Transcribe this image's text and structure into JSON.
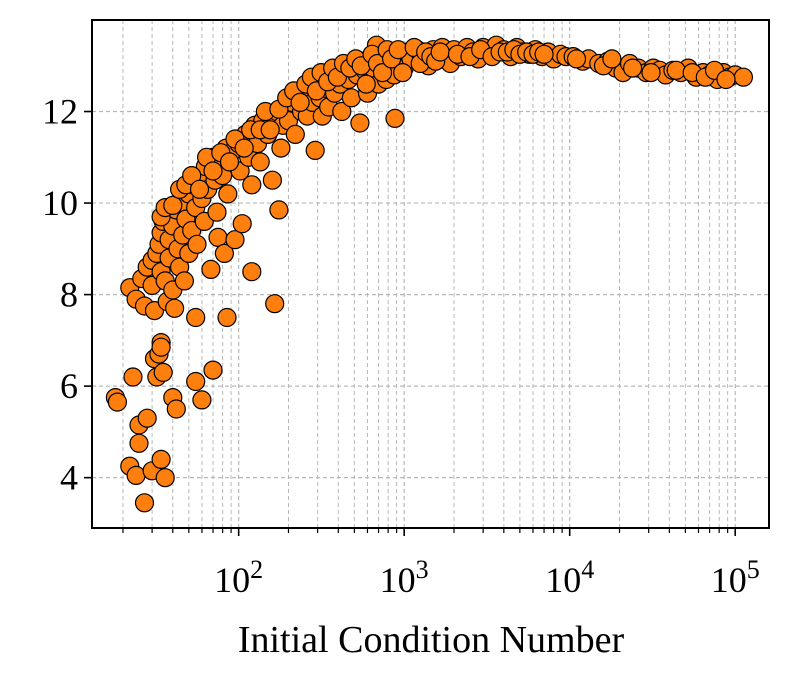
{
  "chart_data": {
    "type": "scatter",
    "title": "",
    "xlabel": "Initial Condition Number",
    "ylabel": "",
    "xscale": "log",
    "xlim": [
      13,
      160000
    ],
    "ylim": [
      2.9,
      14.0
    ],
    "grid": true,
    "grid_style": "dashed",
    "legend": "none",
    "marker_color": "#ff7f0e",
    "marker_edge_color": "#000000",
    "x_tick_labels": [
      {
        "value": 100,
        "base": "10",
        "exp": "2"
      },
      {
        "value": 1000,
        "base": "10",
        "exp": "3"
      },
      {
        "value": 10000,
        "base": "10",
        "exp": "4"
      },
      {
        "value": 100000,
        "base": "10",
        "exp": "5"
      }
    ],
    "y_ticks": [
      4,
      6,
      8,
      10,
      12
    ],
    "y_tick_labels": [
      "4",
      "6",
      "8",
      "10",
      "12"
    ],
    "points": [
      [
        18,
        5.75
      ],
      [
        18.5,
        5.65
      ],
      [
        22,
        4.25
      ],
      [
        23,
        6.2
      ],
      [
        24,
        4.05
      ],
      [
        25,
        4.75
      ],
      [
        25,
        5.15
      ],
      [
        27,
        3.45
      ],
      [
        28,
        5.3
      ],
      [
        30,
        4.15
      ],
      [
        31,
        6.6
      ],
      [
        32,
        6.2
      ],
      [
        33,
        6.7
      ],
      [
        34,
        6.95
      ],
      [
        34,
        6.85
      ],
      [
        35,
        6.3
      ],
      [
        34,
        4.4
      ],
      [
        36,
        4.0
      ],
      [
        40,
        5.75
      ],
      [
        42,
        5.5
      ],
      [
        55,
        6.1
      ],
      [
        60,
        5.7
      ],
      [
        70,
        6.35
      ],
      [
        55,
        7.5
      ],
      [
        85,
        7.5
      ],
      [
        120,
        8.5
      ],
      [
        165,
        7.8
      ],
      [
        175,
        9.85
      ],
      [
        22,
        8.15
      ],
      [
        24,
        7.9
      ],
      [
        26,
        8.35
      ],
      [
        27,
        7.75
      ],
      [
        28,
        8.6
      ],
      [
        30,
        8.75
      ],
      [
        30,
        8.2
      ],
      [
        31,
        7.65
      ],
      [
        32,
        8.9
      ],
      [
        33,
        9.1
      ],
      [
        34,
        8.5
      ],
      [
        34,
        9.35
      ],
      [
        35,
        9.6
      ],
      [
        36,
        8.3
      ],
      [
        37,
        7.85
      ],
      [
        38,
        9.2
      ],
      [
        38,
        8.8
      ],
      [
        40,
        9.5
      ],
      [
        40,
        8.1
      ],
      [
        41,
        7.7
      ],
      [
        42,
        9.85
      ],
      [
        43,
        9.0
      ],
      [
        44,
        8.6
      ],
      [
        45,
        10.0
      ],
      [
        46,
        9.3
      ],
      [
        47,
        8.3
      ],
      [
        48,
        9.65
      ],
      [
        50,
        10.2
      ],
      [
        50,
        8.9
      ],
      [
        52,
        9.4
      ],
      [
        53,
        10.4
      ],
      [
        55,
        9.9
      ],
      [
        56,
        9.1
      ],
      [
        58,
        10.6
      ],
      [
        60,
        10.1
      ],
      [
        62,
        9.6
      ],
      [
        63,
        10.8
      ],
      [
        65,
        10.3
      ],
      [
        68,
        8.55
      ],
      [
        70,
        11.0
      ],
      [
        72,
        10.5
      ],
      [
        74,
        9.8
      ],
      [
        75,
        9.25
      ],
      [
        78,
        10.9
      ],
      [
        80,
        10.6
      ],
      [
        82,
        8.9
      ],
      [
        84,
        11.2
      ],
      [
        86,
        10.2
      ],
      [
        90,
        11.1
      ],
      [
        95,
        9.2
      ],
      [
        100,
        11.3
      ],
      [
        102,
        10.7
      ],
      [
        105,
        9.55
      ],
      [
        110,
        11.5
      ],
      [
        115,
        11.0
      ],
      [
        120,
        10.4
      ],
      [
        125,
        11.7
      ],
      [
        130,
        11.3
      ],
      [
        135,
        10.9
      ],
      [
        140,
        11.8
      ],
      [
        150,
        11.5
      ],
      [
        160,
        10.5
      ],
      [
        165,
        11.9
      ],
      [
        170,
        12.0
      ],
      [
        180,
        11.2
      ],
      [
        185,
        11.7
      ],
      [
        190,
        12.1
      ],
      [
        200,
        11.8
      ],
      [
        210,
        12.2
      ],
      [
        220,
        11.5
      ],
      [
        230,
        12.3
      ],
      [
        240,
        12.0
      ],
      [
        250,
        12.4
      ],
      [
        260,
        11.9
      ],
      [
        270,
        12.5
      ],
      [
        280,
        12.2
      ],
      [
        290,
        11.15
      ],
      [
        300,
        12.6
      ],
      [
        310,
        12.3
      ],
      [
        320,
        11.9
      ],
      [
        330,
        12.7
      ],
      [
        340,
        12.5
      ],
      [
        350,
        12.1
      ],
      [
        360,
        12.8
      ],
      [
        380,
        12.4
      ],
      [
        400,
        12.9
      ],
      [
        410,
        12.6
      ],
      [
        420,
        12.0
      ],
      [
        440,
        12.95
      ],
      [
        460,
        12.7
      ],
      [
        480,
        12.3
      ],
      [
        500,
        13.0
      ],
      [
        520,
        12.8
      ],
      [
        540,
        11.75
      ],
      [
        560,
        13.1
      ],
      [
        580,
        12.9
      ],
      [
        600,
        12.4
      ],
      [
        620,
        13.15
      ],
      [
        650,
        12.95
      ],
      [
        680,
        13.45
      ],
      [
        700,
        12.6
      ],
      [
        720,
        13.2
      ],
      [
        750,
        13.0
      ],
      [
        780,
        12.7
      ],
      [
        800,
        13.25
      ],
      [
        830,
        13.05
      ],
      [
        870,
        12.8
      ],
      [
        880,
        11.85
      ],
      [
        900,
        13.3
      ],
      [
        950,
        13.1
      ],
      [
        1000,
        12.95
      ],
      [
        1050,
        13.3
      ],
      [
        1100,
        13.15
      ],
      [
        1200,
        13.35
      ],
      [
        1300,
        13.2
      ],
      [
        1400,
        13.0
      ],
      [
        1500,
        13.35
      ],
      [
        1600,
        13.2
      ],
      [
        1700,
        13.4
      ],
      [
        1800,
        13.25
      ],
      [
        1900,
        13.05
      ],
      [
        2000,
        13.35
      ],
      [
        2200,
        13.2
      ],
      [
        2400,
        13.4
      ],
      [
        2600,
        13.3
      ],
      [
        2800,
        13.15
      ],
      [
        3000,
        13.4
      ],
      [
        3300,
        13.3
      ],
      [
        3600,
        13.45
      ],
      [
        4000,
        13.35
      ],
      [
        4400,
        13.2
      ],
      [
        4800,
        13.4
      ],
      [
        5200,
        13.3
      ],
      [
        5700,
        13.25
      ],
      [
        6200,
        13.35
      ],
      [
        6800,
        13.2
      ],
      [
        7400,
        13.3
      ],
      [
        8000,
        13.15
      ],
      [
        8800,
        13.25
      ],
      [
        9500,
        13.2
      ],
      [
        10500,
        13.2
      ],
      [
        12000,
        13.1
      ],
      [
        13000,
        13.15
      ],
      [
        15000,
        13.05
      ],
      [
        17000,
        13.1
      ],
      [
        19000,
        12.95
      ],
      [
        21000,
        12.85
      ],
      [
        23000,
        13.05
      ],
      [
        26000,
        12.95
      ],
      [
        29000,
        12.85
      ],
      [
        32000,
        12.95
      ],
      [
        35000,
        12.9
      ],
      [
        38000,
        12.8
      ],
      [
        42000,
        12.9
      ],
      [
        47000,
        12.85
      ],
      [
        52000,
        12.95
      ],
      [
        58000,
        12.75
      ],
      [
        64000,
        12.85
      ],
      [
        70000,
        12.8
      ],
      [
        78000,
        12.7
      ],
      [
        85000,
        12.85
      ],
      [
        92000,
        12.75
      ],
      [
        100000,
        12.8
      ],
      [
        112000,
        12.75
      ],
      [
        34,
        9.7
      ],
      [
        36,
        9.9
      ],
      [
        40,
        9.95
      ],
      [
        44,
        10.3
      ],
      [
        48,
        10.4
      ],
      [
        52,
        10.6
      ],
      [
        58,
        10.3
      ],
      [
        64,
        11.0
      ],
      [
        70,
        10.7
      ],
      [
        78,
        11.1
      ],
      [
        88,
        10.9
      ],
      [
        95,
        11.4
      ],
      [
        108,
        11.2
      ],
      [
        118,
        11.6
      ],
      [
        135,
        11.6
      ],
      [
        145,
        12.0
      ],
      [
        155,
        11.6
      ],
      [
        175,
        12.05
      ],
      [
        195,
        12.3
      ],
      [
        215,
        12.45
      ],
      [
        235,
        12.2
      ],
      [
        255,
        12.6
      ],
      [
        275,
        12.75
      ],
      [
        295,
        12.45
      ],
      [
        315,
        12.85
      ],
      [
        345,
        12.65
      ],
      [
        370,
        12.95
      ],
      [
        395,
        12.75
      ],
      [
        430,
        13.05
      ],
      [
        470,
        12.95
      ],
      [
        510,
        13.15
      ],
      [
        550,
        13.0
      ],
      [
        590,
        12.6
      ],
      [
        640,
        13.25
      ],
      [
        690,
        13.05
      ],
      [
        740,
        12.85
      ],
      [
        790,
        13.35
      ],
      [
        840,
        13.15
      ],
      [
        920,
        13.35
      ],
      [
        980,
        12.85
      ],
      [
        1150,
        13.4
      ],
      [
        1250,
        13.05
      ],
      [
        1350,
        13.3
      ],
      [
        1450,
        13.2
      ],
      [
        1550,
        13.1
      ],
      [
        1650,
        13.3
      ],
      [
        2100,
        13.25
      ],
      [
        2500,
        13.2
      ],
      [
        2900,
        13.35
      ],
      [
        3400,
        13.2
      ],
      [
        3800,
        13.3
      ],
      [
        4200,
        13.3
      ],
      [
        4600,
        13.35
      ],
      [
        5000,
        13.25
      ],
      [
        5500,
        13.3
      ],
      [
        6000,
        13.25
      ],
      [
        6500,
        13.3
      ],
      [
        7000,
        13.25
      ],
      [
        11000,
        13.15
      ],
      [
        16000,
        13.0
      ],
      [
        18000,
        13.15
      ],
      [
        24000,
        12.95
      ],
      [
        31000,
        12.85
      ],
      [
        44000,
        12.9
      ],
      [
        55000,
        12.85
      ],
      [
        66000,
        12.75
      ],
      [
        75000,
        12.9
      ],
      [
        88000,
        12.7
      ]
    ]
  }
}
